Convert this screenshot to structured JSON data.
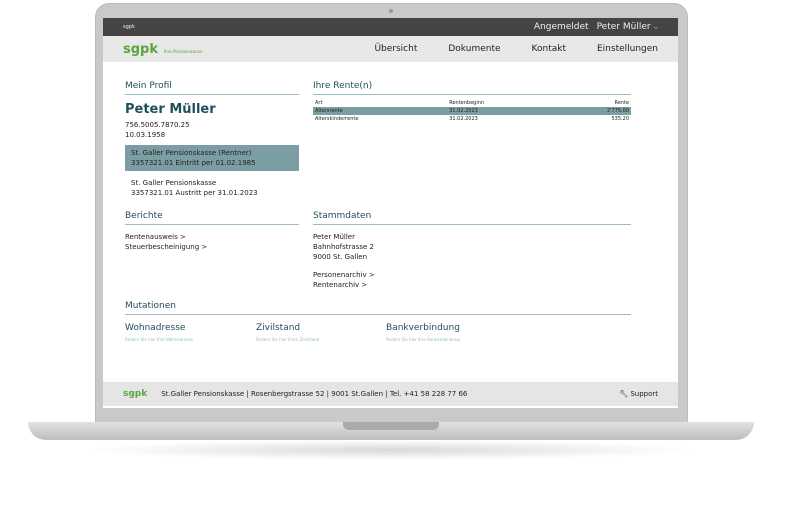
{
  "topbar": {
    "brand": "sgpk",
    "logged_in_label": "Angemeldet",
    "user": "Peter Müller"
  },
  "nav": {
    "logo": "sgpk",
    "tagline": "Ihre Pensionskasse.",
    "items": [
      "Übersicht",
      "Dokumente",
      "Kontakt",
      "Einstellungen"
    ]
  },
  "profile": {
    "title": "Mein Profil",
    "name": "Peter Müller",
    "ahv": "756.5005.7870.25",
    "birthdate": "10.03.1958",
    "entries": [
      {
        "line1": "St. Galler Pensionskasse (Rentner)",
        "line2": "3357321.01  Eintritt per 01.02.1985"
      },
      {
        "line1": "St. Galler Pensionskasse",
        "line2": "3357321.01  Austritt per 31.01.2023"
      }
    ]
  },
  "pensions": {
    "title": "Ihre Rente(n)",
    "headers": [
      "Art",
      "Rentenbeginn",
      "Rente"
    ],
    "rows": [
      [
        "Altersrente",
        "31.02.2023",
        "2'775.00"
      ],
      [
        "Alterskinderrente",
        "31.02.2023",
        "535.20"
      ]
    ]
  },
  "reports": {
    "title": "Berichte",
    "links": [
      "Rentenausweis >",
      "Steuerbescheinigung >"
    ]
  },
  "master": {
    "title": "Stammdaten",
    "address": [
      "Peter Müller",
      "Bahnhofstrasse 2",
      "9000 St. Gallen"
    ],
    "links": [
      "Personenarchiv >",
      "Rentenarchiv >"
    ]
  },
  "mutations": {
    "title": "Mutationen",
    "items": [
      {
        "title": "Wohnadresse",
        "sub": "Ändern Sie hier Ihre Wohnadresse"
      },
      {
        "title": "Zivilstand",
        "sub": "Ändern Sie hier Ihren Zivilstand"
      },
      {
        "title": "Bankverbindung",
        "sub": "Ändern Sie hier Ihre Bankverbindung"
      }
    ]
  },
  "footer": {
    "logo": "sgpk",
    "text": "St.Galler Pensionskasse | Rosenbergstrasse 52 | 9001 St.Gallen | Tel. +41 58 228 77 66",
    "support": "Support"
  }
}
